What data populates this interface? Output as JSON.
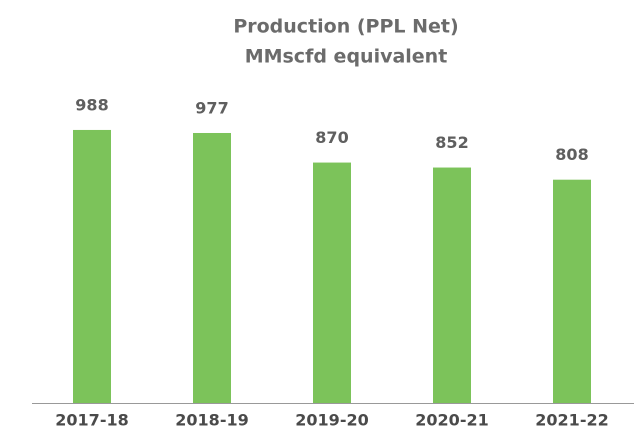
{
  "chart_data": {
    "type": "bar",
    "title": "Production (PPL Net)",
    "subtitle": "MMscfd equivalent",
    "categories": [
      "2017-18",
      "2018-19",
      "2019-20",
      "2020-21",
      "2021-22"
    ],
    "values": [
      988,
      977,
      870,
      852,
      808
    ],
    "color": "#7cc35a",
    "ylim": [
      0,
      1100
    ],
    "grid": false
  }
}
